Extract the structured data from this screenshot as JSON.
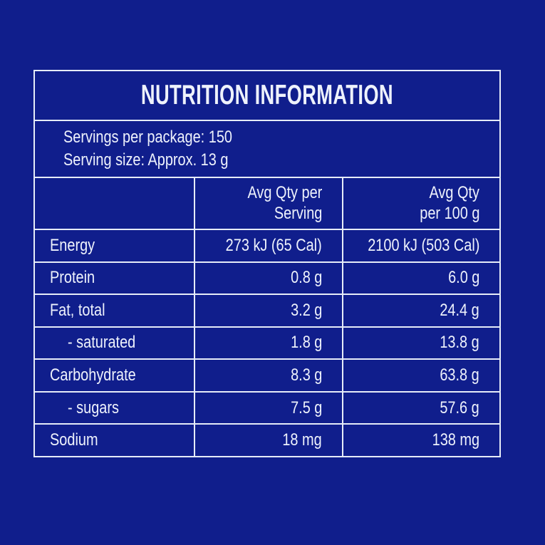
{
  "colors": {
    "background": "#101e8c",
    "border": "#e6ecf8",
    "text": "#eef2fc"
  },
  "panel": {
    "title": "NUTRITION INFORMATION",
    "servings": {
      "per_package": "Servings per package: 150",
      "serving_size": "Serving size: Approx. 13 g"
    },
    "table": {
      "header": {
        "col2_line1": "Avg Qty per",
        "col2_line2": "Serving",
        "col3_line1": "Avg Qty",
        "col3_line2": "per 100 g"
      },
      "rows": [
        {
          "name": "Energy",
          "per_serving": "273 kJ (65 Cal)",
          "per_100g": "2100 kJ (503 Cal)"
        },
        {
          "name": "Protein",
          "per_serving": "0.8 g",
          "per_100g": "6.0 g"
        },
        {
          "name": "Fat, total",
          "per_serving": "3.2 g",
          "per_100g": "24.4 g"
        },
        {
          "name": "- saturated",
          "per_serving": "1.8 g",
          "per_100g": "13.8 g"
        },
        {
          "name": "Carbohydrate",
          "per_serving": "8.3 g",
          "per_100g": "63.8 g"
        },
        {
          "name": "- sugars",
          "per_serving": "7.5 g",
          "per_100g": "57.6 g"
        },
        {
          "name": "Sodium",
          "per_serving": "18 mg",
          "per_100g": "138 mg"
        }
      ]
    }
  }
}
